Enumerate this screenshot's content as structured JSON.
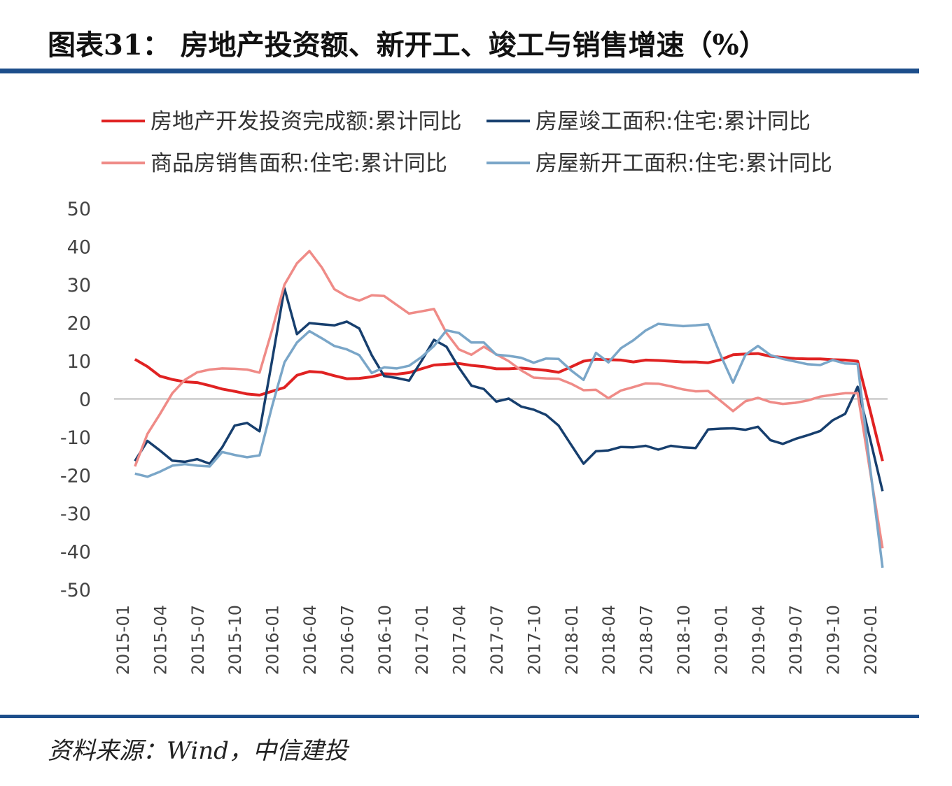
{
  "chart_data": {
    "type": "line",
    "title": "图表31：  房地产投资额、新开工、竣工与销售增速（%）",
    "source": "资料来源：Wind，中信建投",
    "categories": [
      "2015-01",
      null,
      null,
      "2015-04",
      null,
      null,
      "2015-07",
      null,
      null,
      "2015-10",
      null,
      null,
      "2016-01",
      null,
      null,
      "2016-04",
      null,
      null,
      "2016-07",
      null,
      null,
      "2016-10",
      null,
      null,
      "2017-01",
      null,
      null,
      "2017-04",
      null,
      null,
      "2017-07",
      null,
      null,
      "2017-10",
      null,
      null,
      "2018-01",
      null,
      null,
      "2018-04",
      null,
      null,
      "2018-07",
      null,
      null,
      "2018-10",
      null,
      null,
      "2019-01",
      null,
      null,
      "2019-04",
      null,
      null,
      "2019-07",
      null,
      null,
      "2019-10",
      null,
      null,
      "2020-01",
      null
    ],
    "ylim": [
      -50,
      50
    ],
    "yticks": [
      50,
      40,
      30,
      20,
      10,
      0,
      -10,
      -20,
      -30,
      -40,
      -50
    ],
    "grid": false,
    "series": [
      {
        "name": "房地产开发投资完成额:累计同比",
        "color": "#e02222",
        "values": [
          null,
          10.4,
          8.5,
          6.0,
          5.1,
          4.5,
          4.3,
          3.5,
          2.6,
          2.0,
          1.3,
          1.0,
          2.0,
          3.0,
          6.2,
          7.2,
          7.0,
          6.1,
          5.3,
          5.4,
          5.8,
          6.6,
          6.5,
          6.9,
          7.9,
          8.9,
          9.1,
          9.3,
          8.8,
          8.5,
          7.9,
          7.9,
          8.1,
          7.8,
          7.5,
          7.0,
          8.4,
          9.9,
          10.4,
          10.3,
          10.2,
          9.7,
          10.2,
          10.1,
          9.9,
          9.7,
          9.7,
          9.5,
          10.3,
          11.6,
          11.8,
          11.9,
          11.2,
          10.9,
          10.6,
          10.5,
          10.5,
          10.3,
          10.2,
          9.9,
          -3.0,
          -16.3
        ]
      },
      {
        "name": "房屋竣工面积:住宅:累计同比",
        "color": "#173f6e",
        "values": [
          null,
          -16.3,
          -11.0,
          -13.5,
          -16.2,
          -16.5,
          -15.8,
          -17.0,
          -12.7,
          -7.0,
          -6.3,
          -8.5,
          10.0,
          29.0,
          17.0,
          19.9,
          19.6,
          19.3,
          20.3,
          18.5,
          11.5,
          6.0,
          5.5,
          4.8,
          10.0,
          15.5,
          13.7,
          8.2,
          3.5,
          2.6,
          -0.7,
          0.1,
          -2.0,
          -2.8,
          -4.2,
          -7.0,
          -12.0,
          -17.0,
          -13.7,
          -13.5,
          -12.6,
          -12.7,
          -12.3,
          -13.3,
          -12.3,
          -12.7,
          -12.9,
          -8.0,
          -7.8,
          -7.7,
          -8.1,
          -7.3,
          -10.8,
          -11.8,
          -10.5,
          -9.5,
          -8.4,
          -5.6,
          -3.9,
          3.2,
          -10.5,
          -24.2
        ]
      },
      {
        "name": "商品房销售面积:住宅:累计同比",
        "color": "#ef8b87",
        "values": [
          null,
          -17.7,
          -9.2,
          -4.0,
          1.5,
          5.0,
          7.0,
          7.7,
          8.0,
          7.9,
          7.7,
          6.9,
          18.0,
          30.0,
          35.6,
          38.8,
          34.5,
          28.8,
          26.9,
          25.8,
          27.2,
          27.0,
          24.7,
          22.4,
          23.0,
          23.6,
          17.3,
          13.0,
          11.6,
          13.7,
          11.7,
          9.9,
          7.5,
          5.6,
          5.4,
          5.3,
          4.0,
          2.3,
          2.4,
          0.2,
          2.2,
          3.1,
          4.1,
          4.0,
          3.3,
          2.5,
          2.0,
          2.1,
          -0.5,
          -3.2,
          -0.6,
          0.3,
          -0.8,
          -1.3,
          -1.0,
          -0.4,
          0.6,
          1.1,
          1.5,
          1.5,
          -19.0,
          -39.2
        ]
      },
      {
        "name": "房屋新开工面积:住宅:累计同比",
        "color": "#7aa6c8",
        "values": [
          null,
          -19.6,
          -20.4,
          -19.1,
          -17.5,
          -17.1,
          -17.5,
          -17.7,
          -13.9,
          -14.7,
          -15.3,
          -14.8,
          -2.0,
          9.6,
          14.8,
          17.8,
          15.9,
          13.9,
          13.0,
          11.5,
          6.8,
          8.3,
          8.0,
          8.7,
          11.0,
          13.9,
          18.0,
          17.3,
          14.8,
          14.8,
          11.6,
          11.3,
          10.8,
          9.5,
          10.6,
          10.5,
          7.5,
          5.0,
          12.1,
          9.6,
          13.3,
          15.4,
          18.0,
          19.7,
          19.4,
          19.1,
          19.3,
          19.6,
          11.5,
          4.3,
          11.6,
          13.9,
          11.5,
          10.5,
          9.8,
          9.1,
          8.9,
          10.2,
          9.3,
          9.2,
          -18.0,
          -44.3
        ]
      }
    ]
  }
}
